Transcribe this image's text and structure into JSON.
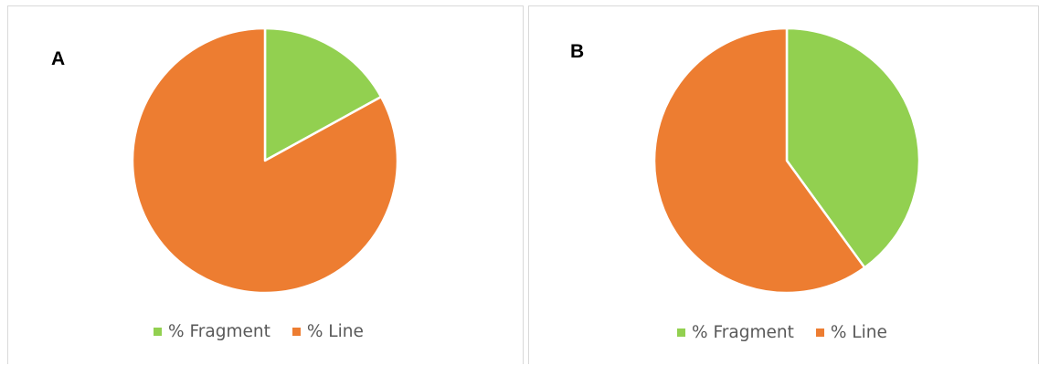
{
  "chart_data": [
    {
      "type": "pie",
      "panel_label": "A",
      "categories": [
        "% Fragment",
        "% Line"
      ],
      "values": [
        17,
        83
      ],
      "colors": [
        "#92d050",
        "#ed7d31"
      ],
      "legend": {
        "position": "bottom"
      }
    },
    {
      "type": "pie",
      "panel_label": "B",
      "categories": [
        "% Fragment",
        "% Line"
      ],
      "values": [
        40,
        60
      ],
      "colors": [
        "#92d050",
        "#ed7d31"
      ],
      "legend": {
        "position": "bottom"
      }
    }
  ]
}
